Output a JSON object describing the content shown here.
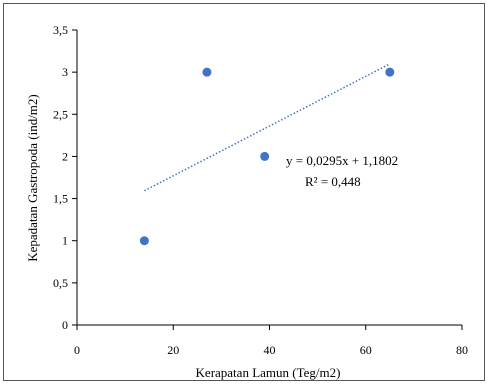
{
  "chart_data": {
    "type": "scatter",
    "title": "",
    "xlabel": "Kerapatan Lamun (Teg/m2)",
    "ylabel": "Kepadatan Gastropoda (ind/m2)",
    "xlim": [
      0,
      80
    ],
    "ylim": [
      0,
      3.5
    ],
    "xticks": [
      0,
      20,
      40,
      60,
      80
    ],
    "xtick_labels": [
      "0",
      "20",
      "40",
      "60",
      "80"
    ],
    "yticks": [
      0,
      0.5,
      1,
      1.5,
      2,
      2.5,
      3,
      3.5
    ],
    "ytick_labels": [
      "0",
      "0,5",
      "1",
      "1,5",
      "2",
      "2,5",
      "3",
      "3,5"
    ],
    "grid": false,
    "series": [
      {
        "points": [
          {
            "x": 14,
            "y": 1
          },
          {
            "x": 27,
            "y": 3
          },
          {
            "x": 39,
            "y": 2
          },
          {
            "x": 65,
            "y": 3
          }
        ],
        "color": "#4472C4"
      }
    ],
    "trendline": {
      "type": "linear",
      "slope": 0.0295,
      "intercept": 1.1802,
      "x_range": [
        14,
        65
      ],
      "color": "#4472C4",
      "style": "dotted"
    },
    "annotations": {
      "equation": "y = 0,0295x + 1,1802",
      "r_squared": "R² = 0,448"
    }
  }
}
